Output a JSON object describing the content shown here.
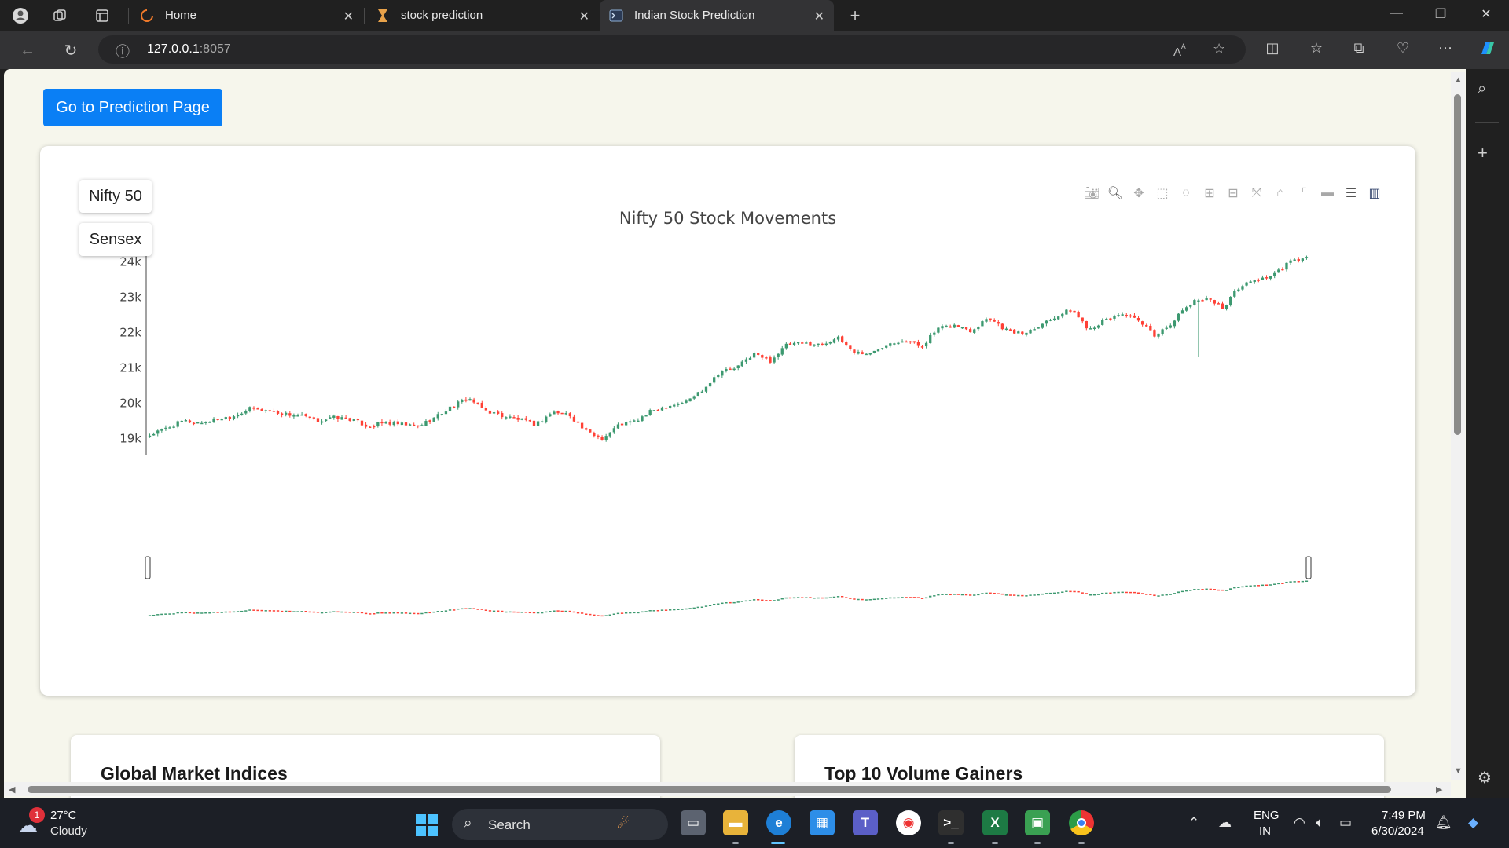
{
  "browser": {
    "tabs": [
      {
        "label": "Home",
        "icon": "edge-loading-icon",
        "active": false
      },
      {
        "label": "stock prediction",
        "icon": "hourglass-icon",
        "active": false
      },
      {
        "label": "Indian Stock Prediction",
        "icon": "terminal-icon",
        "active": true
      }
    ],
    "url_host": "127.0.0.1",
    "url_port": ":8057"
  },
  "page": {
    "prediction_button": "Go to Prediction Page",
    "index_buttons": [
      "Nifty 50",
      "Sensex"
    ],
    "cards": [
      "Global Market Indices",
      "Top 10 Volume Gainers"
    ]
  },
  "chart_data": {
    "type": "candlestick",
    "title": "Nifty 50 Stock Movements",
    "y_tick_labels": [
      "19k",
      "20k",
      "21k",
      "22k",
      "23k",
      "24k"
    ],
    "ylim": [
      18550,
      24250
    ],
    "up_color": "#3d9970",
    "down_color": "#ff4136",
    "range_slider": true,
    "grid": false,
    "approx_closes": [
      19100,
      19300,
      19500,
      19450,
      19550,
      19650,
      19850,
      19800,
      19700,
      19650,
      19500,
      19600,
      19550,
      19350,
      19450,
      19400,
      19350,
      19600,
      19900,
      20150,
      19800,
      19650,
      19550,
      19400,
      19750,
      19700,
      19200,
      19000,
      19400,
      19500,
      19800,
      19950,
      20050,
      20400,
      20900,
      21000,
      21400,
      21200,
      21650,
      21700,
      21650,
      21850,
      21450,
      21400,
      21700,
      21800,
      21600,
      22100,
      22200,
      22050,
      22450,
      22100,
      21950,
      22200,
      22450,
      22650,
      22100,
      22350,
      22550,
      22300,
      21900,
      22300,
      22800,
      23000,
      22700,
      23300,
      23500,
      23600,
      24000,
      24100
    ]
  },
  "taskbar": {
    "weather_temp": "27°C",
    "weather_desc": "Cloudy",
    "weather_badge": "1",
    "search_label": "Search",
    "lang_line1": "ENG",
    "lang_line2": "IN",
    "time": "7:49 PM",
    "date": "6/30/2024"
  }
}
